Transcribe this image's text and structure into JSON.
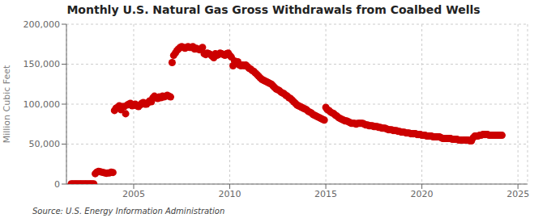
{
  "chart_data": {
    "type": "scatter",
    "title": "Monthly U.S. Natural Gas Gross Withdrawals from Coalbed Wells",
    "ylabel": "Million Cubic Feet",
    "source": "Source: U.S. Energy Information Administration",
    "color": "#CC0000",
    "xlim": [
      2001.5,
      2025.5
    ],
    "xticks": [
      2005,
      2010,
      2015,
      2020,
      2025
    ],
    "ylim": [
      0,
      200000
    ],
    "yticks": [
      0,
      {
        "value": 50000,
        "label": "50,000"
      },
      {
        "value": 100000,
        "label": "100,000"
      },
      {
        "value": 150000,
        "label": "150,000"
      },
      {
        "value": 200000,
        "label": "200,000"
      }
    ],
    "grid": true,
    "x": [
      2001.75,
      2001.83,
      2001.92,
      2002.0,
      2002.08,
      2002.17,
      2002.25,
      2002.33,
      2002.42,
      2002.5,
      2002.58,
      2002.67,
      2002.75,
      2002.83,
      2002.92,
      2003.0,
      2003.08,
      2003.17,
      2003.25,
      2003.33,
      2003.42,
      2003.5,
      2003.58,
      2003.67,
      2003.75,
      2003.83,
      2003.92,
      2004.0,
      2004.08,
      2004.17,
      2004.25,
      2004.33,
      2004.42,
      2004.5,
      2004.58,
      2004.67,
      2004.75,
      2004.83,
      2004.92,
      2005.0,
      2005.08,
      2005.17,
      2005.25,
      2005.33,
      2005.42,
      2005.5,
      2005.58,
      2005.67,
      2005.75,
      2005.83,
      2005.92,
      2006.0,
      2006.08,
      2006.17,
      2006.25,
      2006.33,
      2006.42,
      2006.5,
      2006.58,
      2006.67,
      2006.75,
      2006.83,
      2006.92,
      2007.0,
      2007.08,
      2007.17,
      2007.25,
      2007.33,
      2007.42,
      2007.5,
      2007.58,
      2007.67,
      2007.75,
      2007.83,
      2007.92,
      2008.0,
      2008.08,
      2008.17,
      2008.25,
      2008.33,
      2008.42,
      2008.5,
      2008.58,
      2008.67,
      2008.75,
      2008.83,
      2008.92,
      2009.0,
      2009.08,
      2009.17,
      2009.25,
      2009.33,
      2009.42,
      2009.5,
      2009.58,
      2009.67,
      2009.75,
      2009.83,
      2009.92,
      2010.0,
      2010.08,
      2010.17,
      2010.25,
      2010.33,
      2010.42,
      2010.5,
      2010.58,
      2010.67,
      2010.75,
      2010.83,
      2010.92,
      2011.0,
      2011.08,
      2011.17,
      2011.25,
      2011.33,
      2011.42,
      2011.5,
      2011.58,
      2011.67,
      2011.75,
      2011.83,
      2011.92,
      2012.0,
      2012.08,
      2012.17,
      2012.25,
      2012.33,
      2012.42,
      2012.5,
      2012.58,
      2012.67,
      2012.75,
      2012.83,
      2012.92,
      2013.0,
      2013.08,
      2013.17,
      2013.25,
      2013.33,
      2013.42,
      2013.5,
      2013.58,
      2013.67,
      2013.75,
      2013.83,
      2013.92,
      2014.0,
      2014.08,
      2014.17,
      2014.25,
      2014.33,
      2014.42,
      2014.5,
      2014.58,
      2014.67,
      2014.75,
      2014.83,
      2014.92,
      2015.0,
      2015.08,
      2015.17,
      2015.25,
      2015.33,
      2015.42,
      2015.5,
      2015.58,
      2015.67,
      2015.75,
      2015.83,
      2015.92,
      2016.0,
      2016.08,
      2016.17,
      2016.25,
      2016.33,
      2016.42,
      2016.5,
      2016.58,
      2016.67,
      2016.75,
      2016.83,
      2016.92,
      2017.0,
      2017.08,
      2017.17,
      2017.25,
      2017.33,
      2017.42,
      2017.5,
      2017.58,
      2017.67,
      2017.75,
      2017.83,
      2017.92,
      2018.0,
      2018.08,
      2018.17,
      2018.25,
      2018.33,
      2018.42,
      2018.5,
      2018.58,
      2018.67,
      2018.75,
      2018.83,
      2018.92,
      2019.0,
      2019.08,
      2019.17,
      2019.25,
      2019.33,
      2019.42,
      2019.5,
      2019.58,
      2019.67,
      2019.75,
      2019.83,
      2019.92,
      2020.0,
      2020.08,
      2020.17,
      2020.25,
      2020.33,
      2020.42,
      2020.5,
      2020.58,
      2020.67,
      2020.75,
      2020.83,
      2020.92,
      2021.0,
      2021.08,
      2021.17,
      2021.25,
      2021.33,
      2021.42,
      2021.5,
      2021.58,
      2021.67,
      2021.75,
      2021.83,
      2021.92,
      2022.0,
      2022.08,
      2022.17,
      2022.25,
      2022.33,
      2022.42,
      2022.5,
      2022.58,
      2022.67,
      2022.75,
      2022.83,
      2022.92,
      2023.0,
      2023.08,
      2023.17,
      2023.25,
      2023.33,
      2023.42,
      2023.5,
      2023.58,
      2023.67,
      2023.75,
      2023.83,
      2023.92,
      2024.0,
      2024.08,
      2024.17
    ],
    "values": [
      300,
      300,
      300,
      300,
      300,
      300,
      300,
      300,
      300,
      300,
      300,
      300,
      300,
      300,
      300,
      13000,
      15000,
      16000,
      15500,
      15000,
      14500,
      14000,
      13500,
      14000,
      14000,
      15000,
      14500,
      92000,
      95000,
      96000,
      98000,
      93000,
      97000,
      97000,
      88000,
      99000,
      100000,
      101000,
      98000,
      99000,
      100000,
      98000,
      97000,
      99000,
      101000,
      102000,
      100000,
      100000,
      102000,
      104000,
      103000,
      108000,
      110000,
      108000,
      107000,
      109000,
      108000,
      110000,
      109000,
      110000,
      111000,
      110000,
      109000,
      152000,
      161000,
      164000,
      167000,
      169000,
      171000,
      172000,
      171000,
      170000,
      171000,
      172000,
      171000,
      171000,
      172000,
      169000,
      170000,
      169000,
      168000,
      169000,
      171000,
      163000,
      162000,
      164000,
      163000,
      162000,
      160000,
      158000,
      163000,
      161000,
      162000,
      164000,
      163000,
      162000,
      161000,
      163000,
      164000,
      161000,
      159000,
      148000,
      154000,
      151000,
      153000,
      149000,
      148000,
      149000,
      148000,
      149000,
      147000,
      145000,
      144000,
      142000,
      141000,
      139000,
      137000,
      135000,
      133000,
      131000,
      130000,
      129000,
      128000,
      127000,
      126000,
      125000,
      123000,
      121000,
      119000,
      118000,
      117000,
      115000,
      114000,
      113000,
      111000,
      110000,
      108000,
      107000,
      105000,
      103000,
      101000,
      99000,
      98000,
      97000,
      96000,
      95000,
      94000,
      93000,
      91000,
      90000,
      89000,
      87000,
      86000,
      85000,
      84000,
      83000,
      82000,
      81000,
      80000,
      96000,
      93000,
      92000,
      90000,
      89000,
      88000,
      86000,
      85000,
      83000,
      82000,
      81000,
      80000,
      79000,
      79000,
      78000,
      77000,
      76000,
      76000,
      76000,
      75000,
      76000,
      76000,
      76000,
      76000,
      75000,
      74000,
      74000,
      73000,
      73000,
      73000,
      72000,
      72000,
      72000,
      71000,
      71000,
      70000,
      70000,
      70000,
      69000,
      68000,
      68000,
      68000,
      67000,
      67000,
      67000,
      66000,
      66000,
      65000,
      65000,
      65000,
      64000,
      64000,
      64000,
      63000,
      63000,
      63000,
      63000,
      62000,
      62000,
      62000,
      61000,
      61000,
      61000,
      60000,
      60000,
      60000,
      60000,
      59000,
      59000,
      59000,
      59000,
      59000,
      58000,
      57000,
      57000,
      57000,
      57000,
      57000,
      57000,
      56000,
      56000,
      56000,
      56000,
      55000,
      55000,
      55000,
      55000,
      55000,
      55000,
      55000,
      54000,
      54000,
      58000,
      60000,
      60000,
      60000,
      61000,
      61000,
      62000,
      62000,
      62000,
      62000,
      61000,
      61000,
      61000,
      61000,
      61000,
      61000,
      61000,
      61000,
      61000
    ]
  }
}
